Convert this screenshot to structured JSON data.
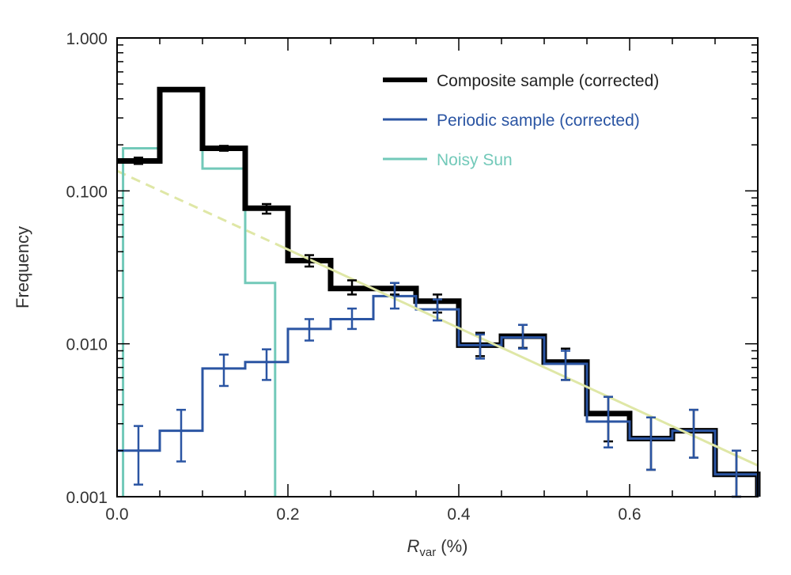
{
  "chart_data": {
    "type": "line",
    "subtype": "step-histogram",
    "xlabel": "R",
    "xlabel_sub": "var",
    "xlabel_unit": "(%)",
    "ylabel": "Frequency",
    "xlim": [
      0,
      0.75
    ],
    "ylim": [
      0.001,
      1.0
    ],
    "yscale": "log",
    "grid": false,
    "legend_position": "top-right",
    "x_ticks": [
      "0.0",
      "0.2",
      "0.4",
      "0.6"
    ],
    "x_tick_values": [
      0,
      0.2,
      0.4,
      0.6
    ],
    "y_ticks": [
      "1.000",
      "0.100",
      "0.010",
      "0.001"
    ],
    "y_tick_values": [
      1,
      0.1,
      0.01,
      0.001
    ],
    "bin_edges": [
      0,
      0.05,
      0.1,
      0.15,
      0.2,
      0.25,
      0.3,
      0.35,
      0.4,
      0.45,
      0.5,
      0.55,
      0.6,
      0.65,
      0.7,
      0.75
    ],
    "series": [
      {
        "name": "Composite sample (corrected)",
        "color": "#000000",
        "values": [
          0.157,
          0.46,
          0.19,
          0.077,
          0.035,
          0.023,
          0.023,
          0.019,
          0.0098,
          0.0112,
          0.0076,
          0.0035,
          0.0024,
          0.0027,
          0.0014
        ],
        "err_low": [
          0.15,
          0.455,
          0.183,
          0.071,
          0.032,
          0.021,
          0.021,
          0.016,
          0.0083,
          0.0094,
          0.0058,
          0.0023,
          0.0015,
          0.0018,
          0.001
        ],
        "err_high": [
          0.165,
          0.465,
          0.197,
          0.082,
          0.038,
          0.026,
          0.025,
          0.021,
          0.0118,
          0.0133,
          0.0093,
          0.0045,
          0.0033,
          0.0037,
          0.002
        ]
      },
      {
        "name": "Periodic sample (corrected)",
        "color": "#2b55a3",
        "values": [
          0.002,
          0.0027,
          0.0069,
          0.0076,
          0.0125,
          0.0145,
          0.0205,
          0.0168,
          0.0098,
          0.011,
          0.0074,
          0.0031,
          0.0024,
          0.0027,
          0.0014
        ],
        "err_low": [
          0.0012,
          0.0017,
          0.0053,
          0.0058,
          0.0105,
          0.0125,
          0.017,
          0.0142,
          0.008,
          0.0093,
          0.0058,
          0.0021,
          0.0015,
          0.0018,
          0.001
        ],
        "err_high": [
          0.0029,
          0.0037,
          0.0085,
          0.0092,
          0.0145,
          0.017,
          0.025,
          0.0195,
          0.0115,
          0.0133,
          0.009,
          0.0045,
          0.0033,
          0.0037,
          0.002
        ]
      },
      {
        "name": "Noisy Sun",
        "color": "#72c9b9",
        "bin_edges": [
          0.007,
          0.05,
          0.1,
          0.15,
          0.185
        ],
        "values": [
          0.19,
          0.46,
          0.14,
          0.025
        ]
      }
    ],
    "fit_line": {
      "color": "#dfe7a6",
      "x": [
        0,
        0.75
      ],
      "y": [
        0.135,
        0.0016
      ],
      "dashed_until_x": 0.19
    }
  }
}
